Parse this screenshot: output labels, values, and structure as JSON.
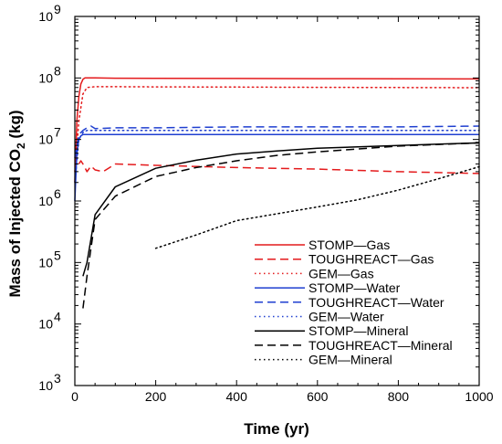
{
  "chart_data": {
    "type": "line",
    "xlabel": "Time (yr)",
    "ylabel": {
      "prefix": "Mass of Injected CO",
      "sub": "2",
      "suffix": " (kg)"
    },
    "xlim": [
      0,
      1000
    ],
    "ylim": [
      1000,
      1000000000
    ],
    "y_scale": "log",
    "x_ticks": [
      0,
      200,
      400,
      600,
      800,
      1000
    ],
    "x_tick_labels": [
      "0",
      "200",
      "400",
      "600",
      "800",
      "1000"
    ],
    "y_ticks": [
      1000,
      10000,
      100000,
      1000000,
      10000000,
      100000000,
      1000000000
    ],
    "y_tick_labels": [
      {
        "base": "10",
        "exp": "3"
      },
      {
        "base": "10",
        "exp": "4"
      },
      {
        "base": "10",
        "exp": "5"
      },
      {
        "base": "10",
        "exp": "6"
      },
      {
        "base": "10",
        "exp": "7"
      },
      {
        "base": "10",
        "exp": "8"
      },
      {
        "base": "10",
        "exp": "9"
      }
    ],
    "legend_position": "bottom-right",
    "grid": false,
    "series": [
      {
        "name": "STOMP—Gas",
        "color": "#e41a1c",
        "dash": "solid",
        "x": [
          0,
          5,
          10,
          15,
          20,
          25,
          30,
          50,
          100,
          200,
          400,
          600,
          800,
          1000
        ],
        "y": [
          2000000,
          20000000,
          50000000,
          80000000,
          95000000,
          100000000,
          100000000,
          100000000,
          99000000,
          98500000,
          98000000,
          97500000,
          97000000,
          96500000
        ]
      },
      {
        "name": "TOUGHREACT—Gas",
        "color": "#e41a1c",
        "dash": "dashed",
        "x": [
          10,
          15,
          20,
          30,
          40,
          50,
          70,
          100,
          200,
          400,
          600,
          800,
          1000
        ],
        "y": [
          4000000,
          4500000,
          4000000,
          3000000,
          3700000,
          3200000,
          3000000,
          4000000,
          3800000,
          3500000,
          3300000,
          3000000,
          2800000
        ]
      },
      {
        "name": "GEM—Gas",
        "color": "#e41a1c",
        "dash": "dotted",
        "x": [
          0,
          10,
          20,
          30,
          50,
          100,
          200,
          400,
          600,
          800,
          1000
        ],
        "y": [
          3000000,
          20000000,
          55000000,
          70000000,
          72000000,
          72000000,
          71500000,
          71000000,
          70500000,
          70000000,
          69500000
        ]
      },
      {
        "name": "STOMP—Water",
        "color": "#1f3fd0",
        "dash": "solid",
        "x": [
          0,
          5,
          10,
          15,
          20,
          30,
          50,
          100,
          200,
          400,
          600,
          800,
          1000
        ],
        "y": [
          1000000,
          6000000,
          10000000,
          11500000,
          12000000,
          12000000,
          12000000,
          12000000,
          12000000,
          12000000,
          12000000,
          12000000,
          12000000
        ]
      },
      {
        "name": "TOUGHREACT—Water",
        "color": "#1f3fd0",
        "dash": "dashed",
        "x": [
          0,
          10,
          20,
          30,
          40,
          50,
          100,
          200,
          400,
          600,
          800,
          1000
        ],
        "y": [
          5000000,
          12000000,
          14000000,
          15500000,
          16500000,
          15000000,
          15500000,
          15500000,
          16000000,
          16000000,
          16000000,
          16500000
        ]
      },
      {
        "name": "GEM—Water",
        "color": "#1f3fd0",
        "dash": "dotted",
        "x": [
          0,
          10,
          20,
          30,
          50,
          100,
          200,
          400,
          600,
          800,
          1000
        ],
        "y": [
          2000000,
          10000000,
          13000000,
          14000000,
          14000000,
          14000000,
          14000000,
          14000000,
          14000000,
          14000000,
          14000000
        ]
      },
      {
        "name": "STOMP—Mineral",
        "color": "#000000",
        "dash": "solid",
        "x": [
          20,
          30,
          50,
          100,
          200,
          300,
          400,
          500,
          600,
          700,
          800,
          900,
          1000
        ],
        "y": [
          60000,
          100000,
          600000,
          1700000,
          3400000,
          4600000,
          5800000,
          6500000,
          7200000,
          7600000,
          8000000,
          8400000,
          8800000
        ]
      },
      {
        "name": "TOUGHREACT—Mineral",
        "color": "#000000",
        "dash": "dashed",
        "x": [
          20,
          30,
          50,
          100,
          200,
          300,
          400,
          500,
          600,
          700,
          800,
          900,
          1000
        ],
        "y": [
          18000,
          60000,
          500000,
          1200000,
          2500000,
          3500000,
          4500000,
          5500000,
          6300000,
          7000000,
          7800000,
          8300000,
          8800000
        ]
      },
      {
        "name": "GEM—Mineral",
        "color": "#000000",
        "dash": "dotted",
        "x": [
          200,
          300,
          400,
          500,
          600,
          700,
          800,
          900,
          1000
        ],
        "y": [
          170000,
          280000,
          480000,
          620000,
          800000,
          1050000,
          1500000,
          2300000,
          3600000
        ]
      }
    ]
  }
}
